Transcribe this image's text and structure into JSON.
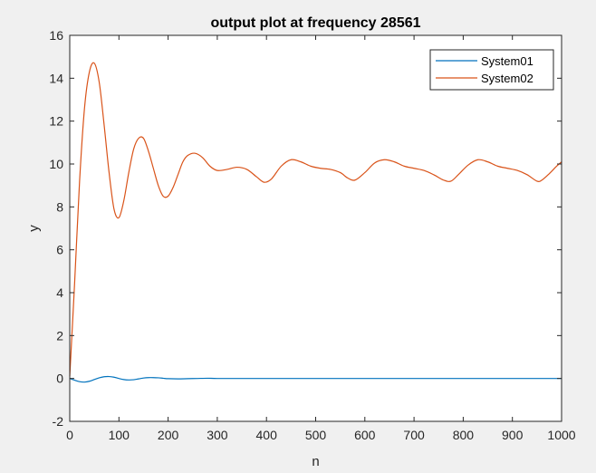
{
  "chart_data": {
    "type": "line",
    "title": "output plot at frequency 28561",
    "xlabel": "n",
    "ylabel": "y",
    "xlim": [
      0,
      1000
    ],
    "ylim": [
      -2,
      16
    ],
    "xticks": [
      0,
      100,
      200,
      300,
      400,
      500,
      600,
      700,
      800,
      900,
      1000
    ],
    "yticks": [
      -2,
      0,
      2,
      4,
      6,
      8,
      10,
      12,
      14,
      16
    ],
    "grid": false,
    "legend_position": "top-right",
    "series": [
      {
        "name": "System01",
        "color": "#0072bd",
        "x": [
          0,
          10,
          20,
          30,
          40,
          50,
          60,
          70,
          80,
          90,
          100,
          110,
          120,
          130,
          140,
          150,
          160,
          170,
          180,
          190,
          200,
          220,
          240,
          260,
          280,
          300,
          350,
          400,
          450,
          500,
          550,
          600,
          650,
          700,
          750,
          800,
          850,
          900,
          950,
          1000
        ],
        "y": [
          0,
          -0.08,
          -0.15,
          -0.17,
          -0.13,
          -0.05,
          0.03,
          0.08,
          0.09,
          0.06,
          0.0,
          -0.05,
          -0.07,
          -0.06,
          -0.02,
          0.02,
          0.04,
          0.04,
          0.03,
          0.01,
          -0.01,
          -0.02,
          -0.01,
          0.0,
          0.01,
          0.0,
          0.0,
          0.0,
          0.0,
          0.0,
          0.0,
          0.0,
          0.0,
          0.0,
          0.0,
          0.0,
          0.0,
          0.0,
          0.0,
          0.0
        ]
      },
      {
        "name": "System02",
        "color": "#d95319",
        "x": [
          0,
          10,
          20,
          30,
          40,
          50,
          60,
          70,
          80,
          90,
          100,
          110,
          120,
          130,
          140,
          150,
          160,
          170,
          180,
          190,
          200,
          210,
          220,
          230,
          240,
          255,
          270,
          285,
          300,
          320,
          340,
          360,
          380,
          395,
          410,
          430,
          450,
          470,
          490,
          510,
          530,
          550,
          565,
          580,
          600,
          620,
          640,
          660,
          680,
          700,
          720,
          740,
          760,
          775,
          790,
          810,
          830,
          850,
          870,
          890,
          910,
          930,
          950,
          960,
          975,
          990,
          1000
        ],
        "y": [
          0.1,
          4.5,
          9.2,
          12.6,
          14.3,
          14.7,
          13.8,
          11.8,
          9.6,
          7.9,
          7.5,
          8.3,
          9.6,
          10.7,
          11.2,
          11.2,
          10.6,
          9.8,
          9.0,
          8.5,
          8.5,
          8.9,
          9.5,
          10.1,
          10.4,
          10.5,
          10.3,
          9.9,
          9.7,
          9.75,
          9.85,
          9.75,
          9.4,
          9.15,
          9.3,
          9.9,
          10.2,
          10.1,
          9.9,
          9.8,
          9.75,
          9.6,
          9.35,
          9.25,
          9.6,
          10.05,
          10.2,
          10.1,
          9.9,
          9.8,
          9.7,
          9.5,
          9.25,
          9.2,
          9.5,
          9.95,
          10.2,
          10.1,
          9.9,
          9.8,
          9.7,
          9.5,
          9.2,
          9.25,
          9.55,
          9.9,
          10.1
        ]
      }
    ]
  }
}
